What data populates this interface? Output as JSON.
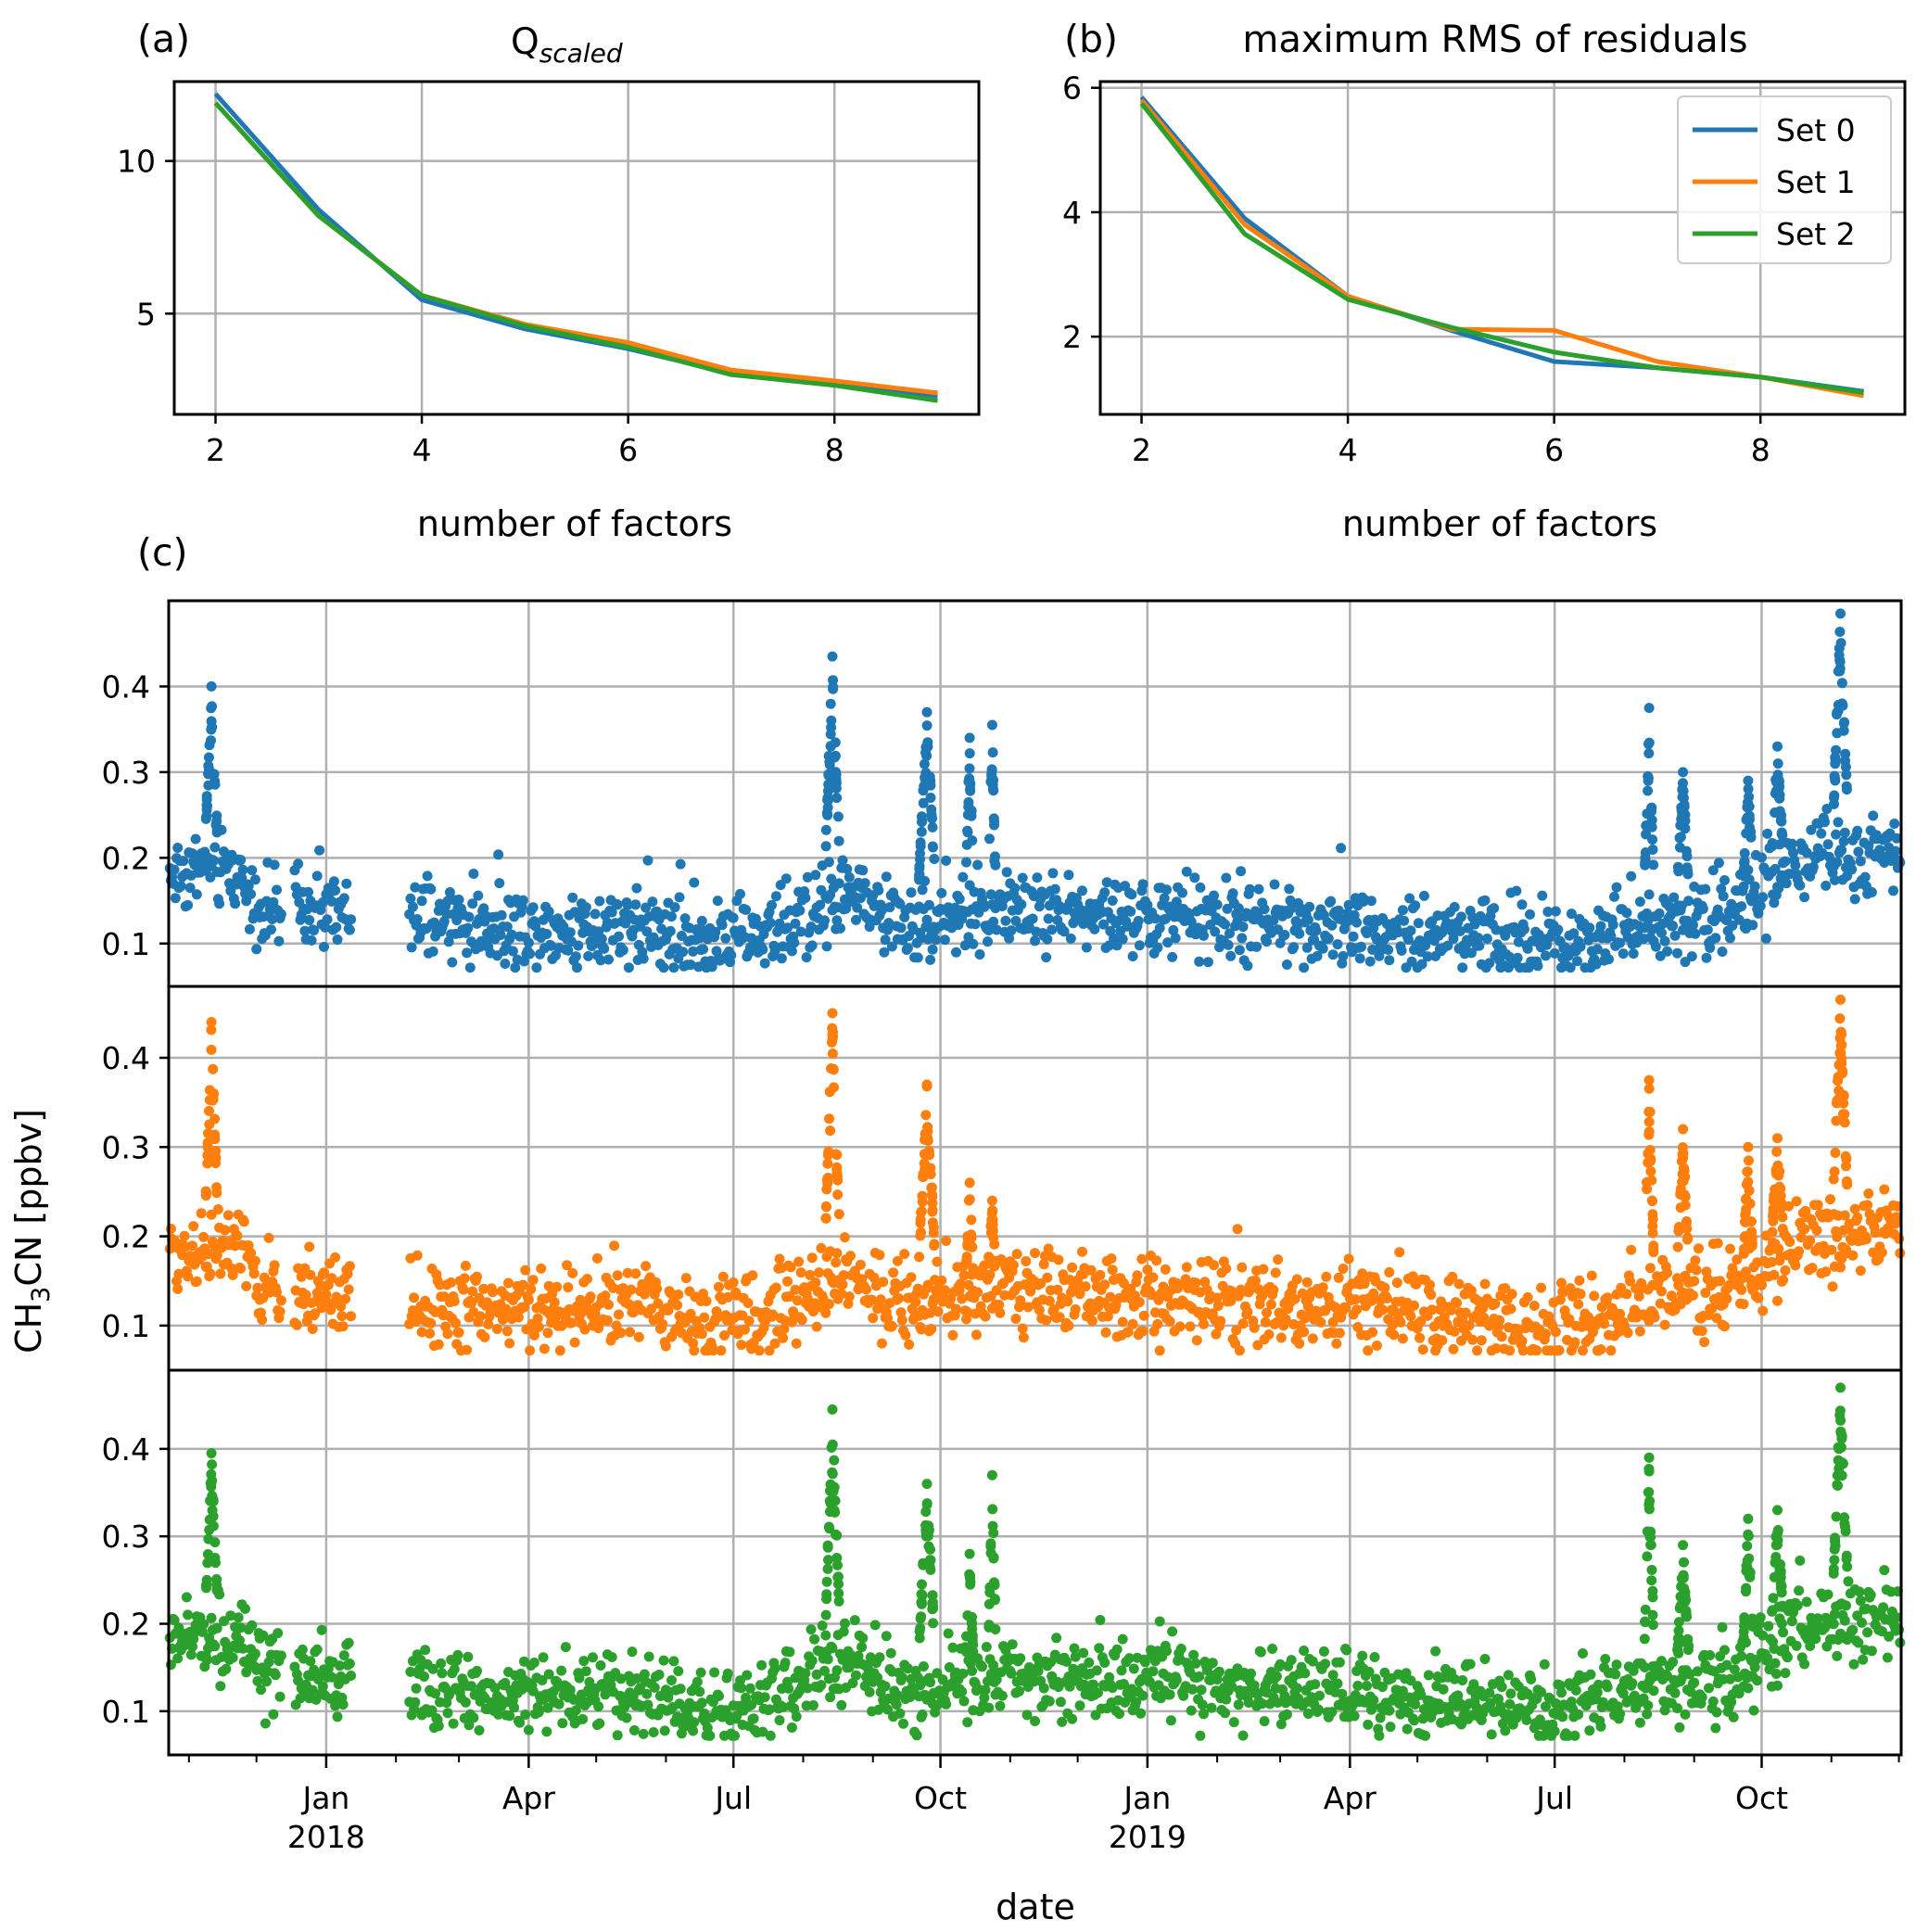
{
  "colors": {
    "set0": "#1f77b4",
    "set1": "#ff7f0e",
    "set2": "#2ca02c",
    "grid": "#b0b0b0",
    "axis": "#000000"
  },
  "panel_labels": {
    "a": "(a)",
    "b": "(b)",
    "c": "(c)"
  },
  "chart_data": [
    {
      "id": "a",
      "type": "line",
      "title_main": "Q",
      "title_sub": "scaled",
      "xlabel": "number of factors",
      "ylabel": "",
      "xlim": [
        1.6,
        9.4
      ],
      "ylim": [
        1.7,
        12.6
      ],
      "xticks": [
        2,
        4,
        6,
        8
      ],
      "yticks": [
        5,
        10
      ],
      "grid": true,
      "x": [
        2,
        3,
        4,
        5,
        6,
        7,
        8,
        9
      ],
      "series": [
        {
          "name": "Set 0",
          "color": "#1f77b4",
          "values": [
            12.2,
            8.4,
            5.45,
            4.5,
            3.85,
            3.05,
            2.75,
            2.3
          ]
        },
        {
          "name": "Set 1",
          "color": "#ff7f0e",
          "values": [
            11.9,
            8.2,
            5.6,
            4.65,
            4.05,
            3.15,
            2.8,
            2.4
          ]
        },
        {
          "name": "Set 2",
          "color": "#2ca02c",
          "values": [
            11.9,
            8.2,
            5.6,
            4.6,
            3.9,
            3.0,
            2.65,
            2.15
          ]
        }
      ]
    },
    {
      "id": "b",
      "type": "line",
      "title": "maximum RMS of residuals",
      "xlabel": "number of factors",
      "ylabel": "",
      "xlim": [
        1.6,
        9.4
      ],
      "ylim": [
        0.75,
        6.1
      ],
      "xticks": [
        2,
        4,
        6,
        8
      ],
      "yticks": [
        2,
        4,
        6
      ],
      "grid": true,
      "legend": {
        "position": "top-right",
        "entries": [
          "Set 0",
          "Set 1",
          "Set 2"
        ]
      },
      "x": [
        2,
        3,
        4,
        5,
        6,
        7,
        8,
        9
      ],
      "series": [
        {
          "name": "Set 0",
          "color": "#1f77b4",
          "values": [
            5.85,
            3.9,
            2.65,
            2.1,
            1.6,
            1.5,
            1.35,
            1.12
          ]
        },
        {
          "name": "Set 1",
          "color": "#ff7f0e",
          "values": [
            5.8,
            3.8,
            2.65,
            2.12,
            2.1,
            1.6,
            1.35,
            1.05
          ]
        },
        {
          "name": "Set 2",
          "color": "#2ca02c",
          "values": [
            5.75,
            3.65,
            2.6,
            2.15,
            1.75,
            1.5,
            1.35,
            1.1
          ]
        }
      ]
    },
    {
      "id": "c",
      "type": "scatter",
      "xlabel": "date",
      "ylabel_main": "CH",
      "ylabel_sub": "3",
      "ylabel_rest": "CN [ppbv]",
      "xlim": [
        "2017-10-23",
        "2019-12-02"
      ],
      "xticks": [
        {
          "date": "2018-01-01",
          "label": "Jan",
          "year": "2018"
        },
        {
          "date": "2018-04-01",
          "label": "Apr",
          "year": ""
        },
        {
          "date": "2018-07-01",
          "label": "Jul",
          "year": ""
        },
        {
          "date": "2018-10-01",
          "label": "Oct",
          "year": ""
        },
        {
          "date": "2019-01-01",
          "label": "Jan",
          "year": "2019"
        },
        {
          "date": "2019-04-01",
          "label": "Apr",
          "year": ""
        },
        {
          "date": "2019-07-01",
          "label": "Jul",
          "year": ""
        },
        {
          "date": "2019-10-01",
          "label": "Oct",
          "year": ""
        }
      ],
      "subplots": [
        {
          "series": "Set 0",
          "color": "#1f77b4",
          "ylim": [
            0.05,
            0.5
          ],
          "yticks": [
            0.1,
            0.2,
            0.3,
            0.4,
            0.5
          ]
        },
        {
          "series": "Set 1",
          "color": "#ff7f0e",
          "ylim": [
            0.05,
            0.48
          ],
          "yticks": [
            0.1,
            0.2,
            0.3,
            0.4
          ]
        },
        {
          "series": "Set 2",
          "color": "#2ca02c",
          "ylim": [
            0.05,
            0.49
          ],
          "yticks": [
            0.1,
            0.2,
            0.3,
            0.4
          ]
        }
      ],
      "baseline_profile": [
        [
          "2017-10-23",
          0.18
        ],
        [
          "2017-11-10",
          0.19
        ],
        [
          "2017-11-25",
          0.18
        ],
        [
          "2017-12-01",
          0.14
        ],
        [
          "2018-01-05",
          0.135
        ],
        [
          "2018-02-10",
          0.125
        ],
        [
          "2018-03-15",
          0.12
        ],
        [
          "2018-04-15",
          0.115
        ],
        [
          "2018-05-15",
          0.125
        ],
        [
          "2018-06-15",
          0.105
        ],
        [
          "2018-07-15",
          0.11
        ],
        [
          "2018-08-01",
          0.13
        ],
        [
          "2018-08-20",
          0.16
        ],
        [
          "2018-09-15",
          0.12
        ],
        [
          "2018-10-15",
          0.14
        ],
        [
          "2018-11-15",
          0.14
        ],
        [
          "2018-12-15",
          0.13
        ],
        [
          "2019-01-15",
          0.13
        ],
        [
          "2019-02-15",
          0.12
        ],
        [
          "2019-03-15",
          0.125
        ],
        [
          "2019-04-15",
          0.115
        ],
        [
          "2019-05-15",
          0.115
        ],
        [
          "2019-06-15",
          0.1
        ],
        [
          "2019-07-15",
          0.105
        ],
        [
          "2019-08-15",
          0.13
        ],
        [
          "2019-09-10",
          0.13
        ],
        [
          "2019-09-25",
          0.15
        ],
        [
          "2019-10-15",
          0.19
        ],
        [
          "2019-11-01",
          0.2
        ],
        [
          "2019-12-02",
          0.21
        ]
      ],
      "data_gaps": [
        [
          "2017-12-12",
          "2017-12-18"
        ],
        [
          "2018-01-12",
          "2018-02-07"
        ]
      ],
      "peaks": [
        {
          "center": "2017-11-11",
          "width_days": 5,
          "values": [
            0.4,
            0.44,
            0.395
          ]
        },
        {
          "center": "2018-08-14",
          "width_days": 6,
          "values": [
            0.435,
            0.45,
            0.445
          ]
        },
        {
          "center": "2018-09-25",
          "width_days": 7,
          "values": [
            0.37,
            0.37,
            0.36
          ]
        },
        {
          "center": "2018-10-14",
          "width_days": 3,
          "values": [
            0.34,
            0.26,
            0.28
          ]
        },
        {
          "center": "2018-10-24",
          "width_days": 3,
          "values": [
            0.355,
            0.24,
            0.37
          ]
        },
        {
          "center": "2019-08-12",
          "width_days": 4,
          "values": [
            0.375,
            0.375,
            0.39
          ]
        },
        {
          "center": "2019-08-27",
          "width_days": 5,
          "values": [
            0.3,
            0.32,
            0.29
          ]
        },
        {
          "center": "2019-09-25",
          "width_days": 4,
          "values": [
            0.29,
            0.3,
            0.32
          ]
        },
        {
          "center": "2019-10-08",
          "width_days": 5,
          "values": [
            0.33,
            0.31,
            0.33
          ]
        },
        {
          "center": "2019-11-05",
          "width_days": 6,
          "values": [
            0.485,
            0.465,
            0.47
          ]
        }
      ]
    }
  ]
}
